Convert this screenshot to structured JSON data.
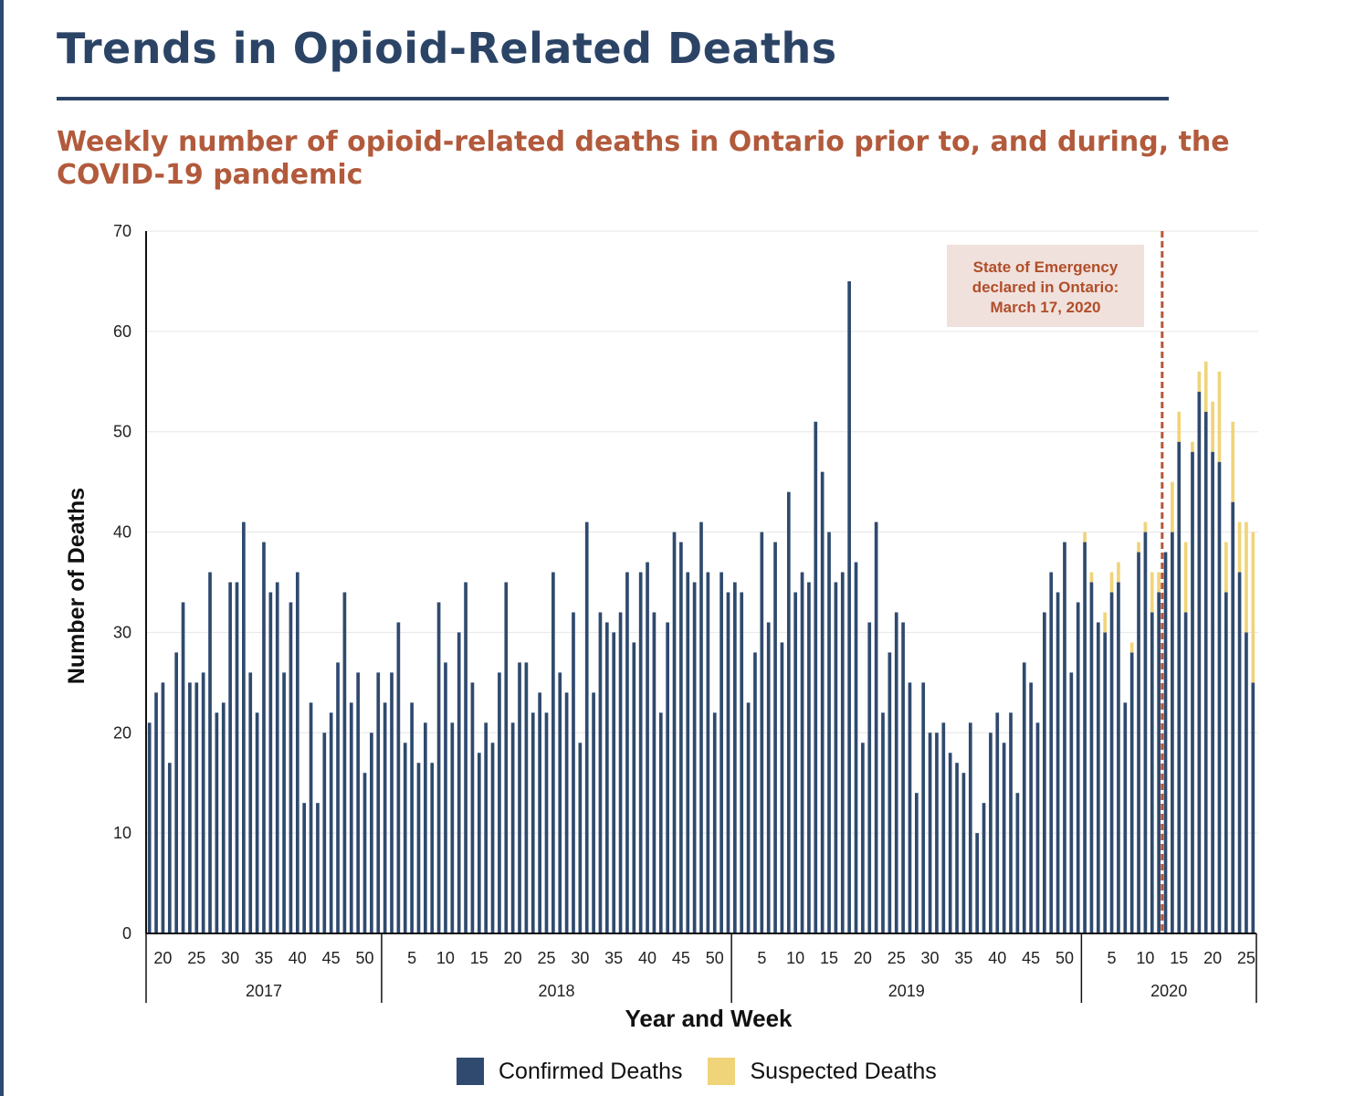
{
  "page": {
    "title": "Trends in Opioid-Related Deaths",
    "subtitle": "Weekly number of opioid-related deaths in Ontario prior to, and during, the COVID-19 pandemic"
  },
  "colors": {
    "title": "#2b4466",
    "subtitle": "#b25a3c",
    "confirmed": "#2f4a6e",
    "suspected": "#f0d479",
    "annotation_text": "#b04e2a",
    "annotation_bg": "#f1e1dc",
    "emergency_line": "#b5573a"
  },
  "chart_data": {
    "type": "bar",
    "stacked": true,
    "xlabel": "Year and Week",
    "ylabel": "Number of Deaths",
    "ylim": [
      0,
      70
    ],
    "yticks": [
      0,
      10,
      20,
      30,
      40,
      50,
      60,
      70
    ],
    "grid": true,
    "legend_position": "bottom",
    "years": [
      {
        "label": "2017",
        "start_week": 18,
        "end_week": 52,
        "tick_weeks": [
          20,
          25,
          30,
          35,
          40,
          45,
          50
        ]
      },
      {
        "label": "2018",
        "start_week": 1,
        "end_week": 52,
        "tick_weeks": [
          5,
          10,
          15,
          20,
          25,
          30,
          35,
          40,
          45,
          50
        ]
      },
      {
        "label": "2019",
        "start_week": 1,
        "end_week": 52,
        "tick_weeks": [
          5,
          10,
          15,
          20,
          25,
          30,
          35,
          40,
          45,
          50
        ]
      },
      {
        "label": "2020",
        "start_week": 1,
        "end_week": 26,
        "tick_weeks": [
          5,
          10,
          15,
          20,
          25
        ]
      }
    ],
    "series": [
      {
        "name": "Confirmed Deaths",
        "color": "#2f4a6e",
        "values": [
          21,
          24,
          25,
          17,
          28,
          33,
          25,
          25,
          26,
          36,
          22,
          23,
          35,
          35,
          41,
          26,
          22,
          39,
          34,
          35,
          26,
          33,
          36,
          13,
          23,
          13,
          20,
          22,
          27,
          34,
          23,
          26,
          16,
          20,
          26,
          23,
          26,
          31,
          19,
          23,
          17,
          21,
          17,
          33,
          27,
          21,
          30,
          35,
          25,
          18,
          21,
          19,
          26,
          35,
          21,
          27,
          27,
          22,
          24,
          22,
          36,
          26,
          24,
          32,
          19,
          41,
          24,
          32,
          31,
          30,
          32,
          36,
          29,
          36,
          37,
          32,
          22,
          31,
          40,
          39,
          36,
          35,
          41,
          36,
          22,
          36,
          34,
          35,
          34,
          23,
          28,
          40,
          31,
          39,
          29,
          44,
          34,
          36,
          35,
          51,
          46,
          40,
          35,
          36,
          65,
          37,
          19,
          31,
          41,
          22,
          28,
          32,
          31,
          25,
          14,
          25,
          20,
          20,
          21,
          18,
          17,
          16,
          21,
          10,
          13,
          20,
          22,
          19,
          22,
          14,
          27,
          25,
          21,
          32,
          36,
          34,
          39,
          26,
          33,
          39,
          35,
          31,
          30,
          34,
          35,
          23,
          28,
          38,
          40,
          32,
          34,
          38,
          40,
          49,
          32,
          48,
          54,
          52,
          48,
          47,
          34,
          43,
          36,
          30,
          25
        ]
      },
      {
        "name": "Suspected Deaths",
        "color": "#f0d479",
        "values": [
          0,
          0,
          0,
          0,
          0,
          0,
          0,
          0,
          0,
          0,
          0,
          0,
          0,
          0,
          0,
          0,
          0,
          0,
          0,
          0,
          0,
          0,
          0,
          0,
          0,
          0,
          0,
          0,
          0,
          0,
          0,
          0,
          0,
          0,
          0,
          0,
          0,
          0,
          0,
          0,
          0,
          0,
          0,
          0,
          0,
          0,
          0,
          0,
          0,
          0,
          0,
          0,
          0,
          0,
          0,
          0,
          0,
          0,
          0,
          0,
          0,
          0,
          0,
          0,
          0,
          0,
          0,
          0,
          0,
          0,
          0,
          0,
          0,
          0,
          0,
          0,
          0,
          0,
          0,
          0,
          0,
          0,
          0,
          0,
          0,
          0,
          0,
          0,
          0,
          0,
          0,
          0,
          0,
          0,
          0,
          0,
          0,
          0,
          0,
          0,
          0,
          0,
          0,
          0,
          0,
          0,
          0,
          0,
          0,
          0,
          0,
          0,
          0,
          0,
          0,
          0,
          0,
          0,
          0,
          0,
          0,
          0,
          0,
          0,
          0,
          0,
          0,
          0,
          0,
          0,
          0,
          0,
          0,
          0,
          0,
          0,
          0,
          0,
          0,
          1,
          1,
          0,
          2,
          2,
          2,
          0,
          1,
          1,
          1,
          4,
          2,
          0,
          5,
          3,
          7,
          1,
          2,
          5,
          5,
          9,
          5,
          8,
          5,
          11,
          15
        ]
      }
    ],
    "annotation": {
      "lines": [
        "State of Emergency",
        "declared in Ontario:",
        "March 17, 2020"
      ],
      "year": "2020",
      "week": 12
    }
  }
}
